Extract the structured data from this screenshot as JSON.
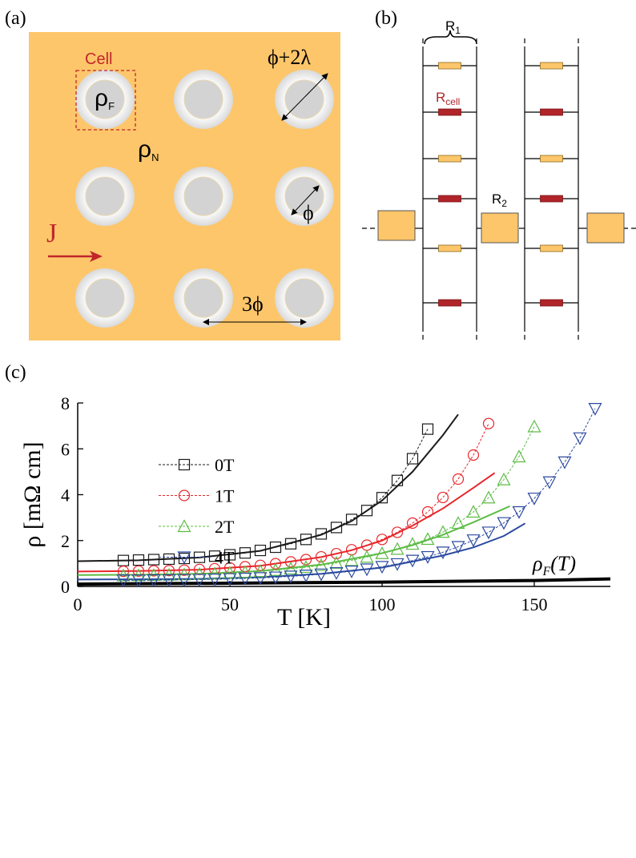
{
  "panel_a": {
    "label": "(a)",
    "cell": "Cell",
    "rho": "ρ",
    "sub_f": "F",
    "sub_n": "N",
    "diameter_outer": "ϕ+2λ",
    "diameter": "ϕ",
    "spacing": "3ϕ",
    "current": "J"
  },
  "panel_b": {
    "label": "(b)",
    "r": "R",
    "sub_1": "1",
    "sub_cell": "cell",
    "sub_2": "2"
  },
  "panel_c": {
    "label": "(c)"
  },
  "chart_data": {
    "type": "line",
    "x_label": "T [K]",
    "y_label": "ρ [mΩ cm]",
    "xlim": [
      0,
      175
    ],
    "xticks": [
      0,
      50,
      100,
      150
    ],
    "ylim": [
      0,
      8
    ],
    "yticks": [
      0,
      2,
      4,
      6,
      8
    ],
    "series": [
      {
        "name": "0T",
        "color": "#1a1a1a",
        "marker": "square",
        "x": [
          15,
          20,
          25,
          30,
          35,
          40,
          45,
          50,
          55,
          60,
          65,
          70,
          75,
          80,
          85,
          90,
          95,
          100,
          105,
          110,
          115
        ],
        "values": [
          1.13,
          1.15,
          1.17,
          1.19,
          1.22,
          1.27,
          1.32,
          1.38,
          1.46,
          1.57,
          1.71,
          1.86,
          2.05,
          2.29,
          2.57,
          2.92,
          3.31,
          3.87,
          4.62,
          5.57,
          6.86
        ]
      },
      {
        "name": "1T",
        "color": "#e8262b",
        "marker": "circle",
        "x": [
          15,
          20,
          25,
          30,
          35,
          40,
          45,
          50,
          55,
          60,
          65,
          70,
          75,
          80,
          85,
          90,
          95,
          100,
          105,
          110,
          115,
          120,
          125,
          130,
          135
        ],
        "values": [
          0.66,
          0.67,
          0.68,
          0.69,
          0.71,
          0.74,
          0.77,
          0.81,
          0.86,
          0.92,
          0.99,
          1.07,
          1.17,
          1.29,
          1.43,
          1.6,
          1.8,
          2.05,
          2.36,
          2.76,
          3.25,
          3.88,
          4.68,
          5.73,
          7.1
        ]
      },
      {
        "name": "2T",
        "color": "#5dbb46",
        "marker": "triangle-up",
        "x": [
          15,
          20,
          25,
          30,
          35,
          40,
          45,
          50,
          55,
          60,
          65,
          70,
          75,
          80,
          85,
          90,
          95,
          100,
          105,
          110,
          115,
          120,
          125,
          130,
          135,
          140,
          145,
          150
        ],
        "values": [
          0.47,
          0.48,
          0.49,
          0.5,
          0.52,
          0.54,
          0.56,
          0.59,
          0.62,
          0.66,
          0.71,
          0.77,
          0.84,
          0.92,
          1.02,
          1.14,
          1.28,
          1.44,
          1.63,
          1.85,
          2.06,
          2.37,
          2.76,
          3.25,
          3.87,
          4.66,
          5.66,
          6.97
        ]
      },
      {
        "name": "4T",
        "color": "#2b4aa0",
        "marker": "triangle-down",
        "x": [
          15,
          20,
          25,
          30,
          35,
          40,
          45,
          50,
          55,
          60,
          65,
          70,
          75,
          80,
          85,
          90,
          95,
          100,
          105,
          110,
          115,
          120,
          125,
          130,
          135,
          140,
          145,
          150,
          155,
          160,
          165,
          170
        ],
        "values": [
          0.27,
          0.27,
          0.28,
          0.28,
          0.29,
          0.3,
          0.31,
          0.33,
          0.35,
          0.37,
          0.4,
          0.44,
          0.48,
          0.53,
          0.59,
          0.66,
          0.75,
          0.86,
          0.98,
          1.13,
          1.29,
          1.49,
          1.73,
          2.02,
          2.36,
          2.77,
          3.25,
          3.84,
          4.55,
          5.42,
          6.47,
          7.75
        ]
      }
    ],
    "fits": [
      {
        "color": "#1a1a1a",
        "x": [
          0,
          20,
          40,
          60,
          80,
          90,
          100,
          110,
          120,
          125
        ],
        "values": [
          1.1,
          1.14,
          1.26,
          1.55,
          2.25,
          2.85,
          3.75,
          5.0,
          6.6,
          7.5
        ]
      },
      {
        "color": "#e8262b",
        "x": [
          0,
          20,
          40,
          60,
          80,
          90,
          100,
          110,
          120,
          130,
          137
        ],
        "values": [
          0.65,
          0.67,
          0.73,
          0.9,
          1.28,
          1.58,
          2.0,
          2.65,
          3.4,
          4.3,
          4.95
        ]
      },
      {
        "color": "#5dbb46",
        "x": [
          0,
          20,
          40,
          60,
          80,
          100,
          110,
          120,
          130,
          142
        ],
        "values": [
          0.5,
          0.51,
          0.55,
          0.67,
          0.95,
          1.45,
          1.8,
          2.25,
          2.8,
          3.5
        ]
      },
      {
        "color": "#2b4aa0",
        "x": [
          0,
          20,
          40,
          60,
          80,
          100,
          120,
          130,
          140,
          147
        ],
        "values": [
          0.3,
          0.31,
          0.33,
          0.4,
          0.55,
          0.82,
          1.35,
          1.7,
          2.2,
          2.75
        ]
      }
    ],
    "rho_f_curve": {
      "color": "#000000",
      "x": [
        0,
        50,
        100,
        150,
        175
      ],
      "values": [
        0.1,
        0.14,
        0.19,
        0.26,
        0.33
      ],
      "label": "ρ",
      "label_sub": "F",
      "label_tail": "(T)"
    }
  }
}
